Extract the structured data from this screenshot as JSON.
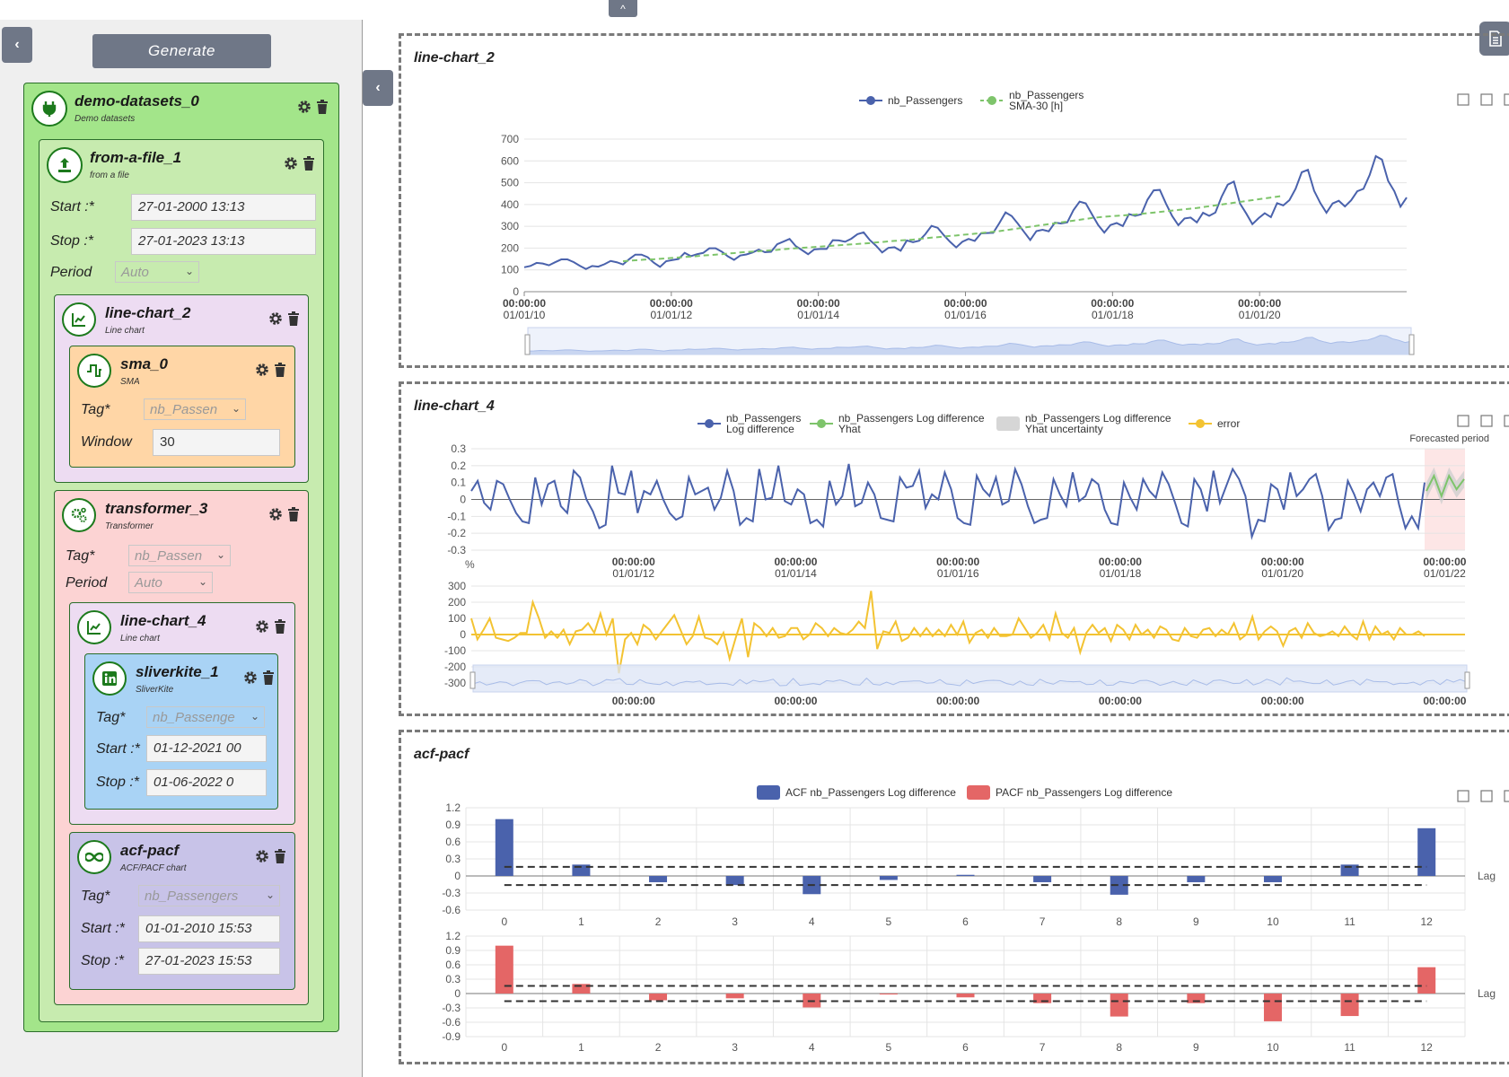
{
  "sidebar": {
    "collapse_label": "‹",
    "generate_label": "Generate",
    "nodes": {
      "demo": {
        "title": "demo-datasets_0",
        "subtitle": "Demo datasets"
      },
      "file": {
        "title": "from-a-file_1",
        "subtitle": "from a file",
        "start_label": "Start :*",
        "start_value": "27-01-2000 13:13",
        "stop_label": "Stop :*",
        "stop_value": "27-01-2023 13:13",
        "period_label": "Period",
        "period_value": "Auto"
      },
      "lc2": {
        "title": "line-chart_2",
        "subtitle": "Line chart"
      },
      "sma": {
        "title": "sma_0",
        "subtitle": "SMA",
        "tag_label": "Tag*",
        "tag_value": "nb_Passen",
        "window_label": "Window",
        "window_value": "30"
      },
      "tr": {
        "title": "transformer_3",
        "subtitle": "Transformer",
        "tag_label": "Tag*",
        "tag_value": "nb_Passen",
        "period_label": "Period",
        "period_value": "Auto"
      },
      "lc4": {
        "title": "line-chart_4",
        "subtitle": "Line chart"
      },
      "sk": {
        "title": "sliverkite_1",
        "subtitle": "SliverKite",
        "tag_label": "Tag*",
        "tag_value": "nb_Passenge",
        "start_label": "Start :*",
        "start_value": "01-12-2021 00",
        "stop_label": "Stop :*",
        "stop_value": "01-06-2022 0"
      },
      "acf": {
        "title": "acf-pacf",
        "subtitle": "ACF/PACF chart",
        "tag_label": "Tag*",
        "tag_value": "nb_Passengers",
        "start_label": "Start :*",
        "start_value": "01-01-2010 15:53",
        "stop_label": "Stop :*",
        "stop_value": "27-01-2023 15:53"
      }
    }
  },
  "top_tab_label": "^",
  "panel_collapse_label": "‹",
  "panels": {
    "p1_title": "line-chart_2",
    "p2_title": "line-chart_4",
    "p3_title": "acf-pacf"
  },
  "chart_data": [
    {
      "type": "line",
      "title": "line-chart_2",
      "legend": [
        "nb_Passengers",
        "nb_Passengers SMA-30 [h]"
      ],
      "y_ticks": [
        "0",
        "100",
        "200",
        "300",
        "400",
        "500",
        "600",
        "700"
      ],
      "ylim": [
        0,
        700
      ],
      "x_ticks": [
        [
          "00:00:00",
          "01/01/10"
        ],
        [
          "00:00:00",
          "01/01/12"
        ],
        [
          "00:00:00",
          "01/01/14"
        ],
        [
          "00:00:00",
          "01/01/16"
        ],
        [
          "00:00:00",
          "01/01/18"
        ],
        [
          "00:00:00",
          "01/01/20"
        ]
      ],
      "x_range": [
        2010,
        2022
      ],
      "series": [
        {
          "name": "nb_Passengers",
          "color": "#4a62ac",
          "values": [
            112,
            118,
            132,
            129,
            121,
            135,
            148,
            148,
            136,
            119,
            104,
            118,
            115,
            126,
            141,
            135,
            125,
            149,
            170,
            170,
            158,
            133,
            114,
            140,
            145,
            150,
            178,
            163,
            172,
            178,
            199,
            199,
            184,
            162,
            146,
            166,
            171,
            180,
            193,
            181,
            183,
            218,
            230,
            242,
            209,
            191,
            172,
            194,
            196,
            196,
            236,
            235,
            229,
            243,
            264,
            272,
            237,
            211,
            180,
            201,
            204,
            188,
            235,
            227,
            234,
            264,
            302,
            293,
            259,
            229,
            203,
            229,
            242,
            233,
            267,
            269,
            270,
            315,
            364,
            347,
            312,
            274,
            237,
            278,
            284,
            277,
            317,
            313,
            318,
            374,
            413,
            405,
            355,
            306,
            271,
            306,
            315,
            301,
            356,
            348,
            355,
            422,
            465,
            467,
            404,
            347,
            305,
            336,
            340,
            318,
            362,
            348,
            363,
            435,
            491,
            505,
            404,
            359,
            310,
            337,
            360,
            342,
            406,
            396,
            420,
            472,
            548,
            559,
            463,
            407,
            362,
            405,
            417,
            391,
            419,
            461,
            472,
            535,
            622,
            606,
            508,
            461,
            390,
            432
          ]
        },
        {
          "name": "nb_Passengers SMA-30 [h]",
          "color": "#7ec46b",
          "dashed": true,
          "start_index": 16,
          "values": [
            140,
            142,
            144,
            146,
            148,
            149,
            151,
            153,
            155,
            157,
            159,
            161,
            163,
            166,
            168,
            170,
            172,
            175,
            177,
            180,
            182,
            184,
            186,
            188,
            190,
            192,
            195,
            197,
            199,
            201,
            203,
            205,
            207,
            209,
            211,
            213,
            215,
            217,
            219,
            221,
            223,
            226,
            228,
            231,
            233,
            235,
            237,
            239,
            242,
            245,
            248,
            250,
            253,
            256,
            258,
            261,
            263,
            266,
            269,
            272,
            275,
            278,
            282,
            286,
            290,
            294,
            298,
            302,
            306,
            310,
            314,
            318,
            322,
            326,
            330,
            334,
            338,
            341,
            344,
            346,
            348,
            350,
            352,
            354,
            357,
            360,
            363,
            366,
            369,
            372,
            375,
            378,
            381,
            384,
            388,
            392,
            396,
            400,
            404,
            408,
            412,
            416,
            420,
            424,
            428,
            432,
            436,
            440
          ]
        }
      ]
    },
    {
      "type": "line",
      "title": "line-chart_4",
      "legend": [
        "nb_Passengers Log difference",
        "nb_Passengers Log difference Yhat",
        "nb_Passengers Log difference Yhat uncertainty",
        "error"
      ],
      "annotation": "Forecasted period",
      "unit_label": "%",
      "top_y_ticks": [
        "0.3",
        "0.2",
        "0.1",
        "0",
        "-0.1",
        "-0.2",
        "-0.3"
      ],
      "top_ylim": [
        -0.3,
        0.3
      ],
      "x_ticks": [
        [
          "00:00:00",
          "01/01/12"
        ],
        [
          "00:00:00",
          "01/01/14"
        ],
        [
          "00:00:00",
          "01/01/16"
        ],
        [
          "00:00:00",
          "01/01/18"
        ],
        [
          "00:00:00",
          "01/01/20"
        ],
        [
          "00:00:00",
          "01/01/22"
        ]
      ],
      "x_range": [
        2010,
        2022.25
      ],
      "bottom_y_ticks": [
        "300",
        "200",
        "100",
        "0",
        "-100",
        "-200",
        "-300"
      ],
      "bottom_ylim": [
        -300,
        300
      ],
      "series": [
        {
          "name": "nb_Passengers Log difference",
          "color": "#4a62ac",
          "values": [
            0.05,
            0.11,
            -0.02,
            -0.06,
            0.11,
            0.09,
            0,
            -0.08,
            -0.13,
            -0.14,
            0.13,
            -0.03,
            0.09,
            0.11,
            -0.04,
            -0.08,
            0.17,
            0.13,
            0,
            -0.07,
            -0.17,
            -0.15,
            0.2,
            0.04,
            0.03,
            0.17,
            -0.08,
            0.05,
            0.03,
            0.11,
            0,
            -0.08,
            -0.12,
            -0.1,
            0.13,
            0.03,
            0.05,
            0.07,
            -0.06,
            0.01,
            0.17,
            0.05,
            -0.15,
            -0.11,
            -0.13,
            0.18,
            0,
            0.01,
            0.2,
            -0.01,
            -0.03,
            0.06,
            0.03,
            -0.14,
            -0.12,
            -0.16,
            0.11,
            -0.03,
            0.02,
            0.21,
            -0.04,
            -0.02,
            0.1,
            0.03,
            -0.11,
            -0.12,
            -0.13,
            0.13,
            0.07,
            0.08,
            0.17,
            -0.05,
            0.03,
            0,
            0.16,
            0.06,
            -0.11,
            -0.14,
            -0.15,
            0.14,
            0.06,
            0.02,
            0.13,
            -0.03,
            -0.01,
            0.18,
            0.09,
            -0.04,
            -0.14,
            -0.12,
            -0.11,
            0.12,
            0.03,
            -0.04,
            0.16,
            -0.01,
            0.02,
            0.12,
            0.09,
            -0.06,
            -0.14,
            -0.15,
            0.1,
            0.01,
            -0.06,
            0.12,
            0.05,
            0.01,
            0.16,
            0.09,
            -0.02,
            -0.14,
            -0.16,
            0.12,
            0.06,
            -0.07,
            0.17,
            -0.02,
            0.08,
            0.18,
            0.12,
            0.02,
            -0.22,
            -0.12,
            -0.13,
            0.09,
            0.06,
            -0.06,
            0.16,
            0.02,
            0.06,
            0.12,
            0.15,
            0.02,
            -0.18,
            -0.12,
            -0.11,
            0.11,
            0.03,
            -0.07,
            0.06,
            0.1,
            0.02,
            0.13,
            0.15,
            -0.03,
            -0.17,
            -0.1,
            -0.17,
            0.1
          ]
        },
        {
          "name": "nb_Passengers Log difference Yhat",
          "color": "#7ec46b",
          "values": [
            0.05,
            0.14,
            0.02,
            0.14,
            0.06,
            0.12
          ]
        },
        {
          "name": "error",
          "color": "#f3c332",
          "values": [
            100,
            -30,
            30,
            100,
            -20,
            -30,
            -40,
            -20,
            10,
            10,
            200,
            100,
            -20,
            20,
            -20,
            30,
            -60,
            20,
            30,
            70,
            10,
            130,
            0,
            100,
            -240,
            -30,
            10,
            -60,
            60,
            30,
            -30,
            20,
            70,
            120,
            30,
            -60,
            -10,
            110,
            -20,
            -30,
            -60,
            10,
            -150,
            -20,
            100,
            -140,
            70,
            40,
            -10,
            40,
            -20,
            -10,
            40,
            40,
            -30,
            0,
            70,
            40,
            -10,
            40,
            10,
            0,
            30,
            80,
            40,
            270,
            -90,
            20,
            10,
            80,
            -40,
            -20,
            40,
            -10,
            40,
            -10,
            30,
            -10,
            60,
            0,
            80,
            -50,
            10,
            30,
            -20,
            40,
            -10,
            -10,
            0,
            100,
            40,
            -20,
            10,
            60,
            -30,
            130,
            10,
            -20,
            40,
            -110,
            10,
            60,
            10,
            40,
            -40,
            60,
            30,
            -30,
            60,
            0,
            30,
            -20,
            50,
            30,
            -30,
            -40,
            40,
            -10,
            -20,
            30,
            40,
            -10,
            30,
            0,
            70,
            -30,
            0,
            110,
            -30,
            20,
            50,
            20,
            -70,
            20,
            40,
            -20,
            70,
            10,
            -10,
            0,
            20,
            -10,
            50,
            0,
            -30,
            80,
            -30,
            50,
            0,
            20,
            -30,
            40,
            0,
            0,
            20,
            -10
          ]
        }
      ]
    },
    {
      "type": "bar",
      "title": "acf-pacf",
      "legend": [
        "ACF nb_Passengers Log difference",
        "PACF nb_Passengers Log difference"
      ],
      "categories": [
        "0",
        "1",
        "2",
        "3",
        "4",
        "5",
        "6",
        "7",
        "8",
        "9",
        "10",
        "11",
        "12"
      ],
      "x_label": "Lag",
      "top_y_ticks": [
        "1.2",
        "0.9",
        "0.6",
        "0.3",
        "0",
        "-0.3",
        "-0.6"
      ],
      "top_ylim": [
        -0.6,
        1.2
      ],
      "bottom_y_ticks": [
        "1.2",
        "0.9",
        "0.6",
        "0.3",
        "0",
        "-0.3",
        "-0.6",
        "-0.9"
      ],
      "bottom_ylim": [
        -0.9,
        1.2
      ],
      "confidence_band": [
        -0.16,
        0.16
      ],
      "series": [
        {
          "name": "ACF nb_Passengers Log difference",
          "color": "#4a62ac",
          "values": [
            1.0,
            0.2,
            -0.11,
            -0.16,
            -0.32,
            -0.07,
            0.02,
            -0.11,
            -0.33,
            -0.11,
            -0.11,
            0.2,
            0.84
          ]
        },
        {
          "name": "PACF nb_Passengers Log difference",
          "color": "#e46666",
          "values": [
            1.0,
            0.2,
            -0.14,
            -0.1,
            -0.29,
            -0.02,
            -0.08,
            -0.2,
            -0.48,
            -0.2,
            -0.58,
            -0.47,
            0.55
          ]
        }
      ]
    }
  ]
}
